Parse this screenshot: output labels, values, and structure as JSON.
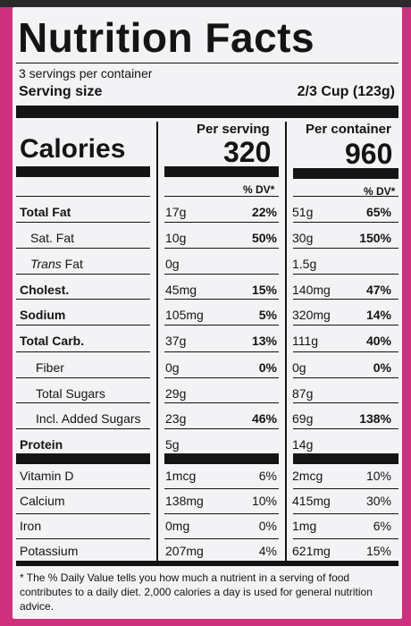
{
  "title": "Nutrition Facts",
  "servings": "3 servings per container",
  "serving_size": {
    "label": "Serving size",
    "value": "2/3 Cup (123g)"
  },
  "calories": {
    "label": "Calories",
    "per_serving_header": "Per serving",
    "per_container_header": "Per container",
    "per_serving": "320",
    "per_container": "960"
  },
  "dv_header": "% DV*",
  "nutrients": [
    {
      "name": "Total Fat",
      "serving": "17g",
      "serving_dv": "22%",
      "container": "51g",
      "container_dv": "65%"
    },
    {
      "name": "Sat. Fat",
      "serving": "10g",
      "serving_dv": "50%",
      "container": "30g",
      "container_dv": "150%"
    },
    {
      "name": "Fat",
      "prefix": "Trans",
      "serving": "0g",
      "serving_dv": "",
      "container": "1.5g",
      "container_dv": ""
    },
    {
      "name": "Cholest.",
      "serving": "45mg",
      "serving_dv": "15%",
      "container": "140mg",
      "container_dv": "47%"
    },
    {
      "name": "Sodium",
      "serving": "105mg",
      "serving_dv": "5%",
      "container": "320mg",
      "container_dv": "14%"
    },
    {
      "name": "Total Carb.",
      "serving": "37g",
      "serving_dv": "13%",
      "container": "111g",
      "container_dv": "40%"
    },
    {
      "name": "Fiber",
      "serving": "0g",
      "serving_dv": "0%",
      "container": "0g",
      "container_dv": "0%"
    },
    {
      "name": "Total Sugars",
      "serving": "29g",
      "serving_dv": "",
      "container": "87g",
      "container_dv": ""
    },
    {
      "name": "Incl. Added Sugars",
      "serving": "23g",
      "serving_dv": "46%",
      "container": "69g",
      "container_dv": "138%"
    },
    {
      "name": "Protein",
      "serving": "5g",
      "serving_dv": "",
      "container": "14g",
      "container_dv": ""
    }
  ],
  "vitamins": [
    {
      "name": "Vitamin D",
      "serving": "1mcg",
      "serving_dv": "6%",
      "container": "2mcg",
      "container_dv": "10%"
    },
    {
      "name": "Calcium",
      "serving": "138mg",
      "serving_dv": "10%",
      "container": "415mg",
      "container_dv": "30%"
    },
    {
      "name": "Iron",
      "serving": "0mg",
      "serving_dv": "0%",
      "container": "1mg",
      "container_dv": "6%"
    },
    {
      "name": "Potassium",
      "serving": "207mg",
      "serving_dv": "4%",
      "container": "621mg",
      "container_dv": "15%"
    }
  ],
  "footnote": "* The % Daily Value tells you how much a nutrient in a serving of food contributes to a daily diet. 2,000 calories a day is used for general nutrition advice.",
  "colors": {
    "background": "#cf2f7d",
    "panel": "#f3f3f5",
    "ink": "#141414"
  }
}
